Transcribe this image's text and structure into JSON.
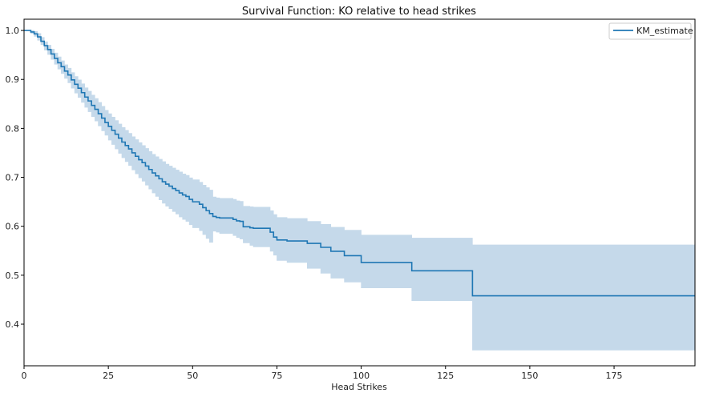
{
  "chart_data": {
    "type": "line",
    "title": "Survival Function: KO relative to head strikes",
    "xlabel": "Head Strikes",
    "ylabel": "",
    "xlim": [
      0,
      199
    ],
    "ylim": [
      0.315,
      1.023
    ],
    "xticks": [
      0,
      25,
      50,
      75,
      100,
      125,
      150,
      175
    ],
    "yticks": [
      0.4,
      0.5,
      0.6,
      0.7,
      0.8,
      0.9,
      1.0
    ],
    "ytick_labels": [
      "0.4",
      "0.5",
      "0.6",
      "0.7",
      "0.8",
      "0.9",
      "1.0"
    ],
    "grid": false,
    "legend": {
      "position": "top-right",
      "entries": [
        "KM_estimate"
      ]
    },
    "series": [
      {
        "name": "KM_estimate",
        "step": "post",
        "color": "#1f77b4",
        "band_color": "#c5d9ea",
        "x": [
          0,
          2,
          3,
          4,
          5,
          6,
          7,
          8,
          9,
          10,
          11,
          12,
          13,
          14,
          15,
          16,
          17,
          18,
          19,
          20,
          21,
          22,
          23,
          24,
          25,
          26,
          27,
          28,
          29,
          30,
          31,
          32,
          33,
          34,
          35,
          36,
          37,
          38,
          39,
          40,
          41,
          42,
          43,
          44,
          45,
          46,
          47,
          48,
          49,
          50,
          52,
          53,
          54,
          55,
          56,
          57,
          58,
          62,
          63,
          64,
          65,
          67,
          68,
          73,
          74,
          75,
          78,
          84,
          88,
          91,
          95,
          100,
          115,
          133,
          199
        ],
        "y": [
          1.0,
          0.997,
          0.993,
          0.987,
          0.978,
          0.969,
          0.961,
          0.952,
          0.943,
          0.934,
          0.926,
          0.917,
          0.909,
          0.899,
          0.89,
          0.882,
          0.873,
          0.864,
          0.856,
          0.847,
          0.839,
          0.83,
          0.821,
          0.812,
          0.804,
          0.796,
          0.788,
          0.78,
          0.772,
          0.765,
          0.758,
          0.75,
          0.743,
          0.736,
          0.73,
          0.723,
          0.716,
          0.709,
          0.703,
          0.697,
          0.691,
          0.686,
          0.682,
          0.677,
          0.673,
          0.668,
          0.664,
          0.661,
          0.655,
          0.65,
          0.645,
          0.638,
          0.632,
          0.626,
          0.62,
          0.618,
          0.617,
          0.614,
          0.611,
          0.61,
          0.599,
          0.597,
          0.596,
          0.588,
          0.578,
          0.572,
          0.57,
          0.565,
          0.557,
          0.549,
          0.54,
          0.526,
          0.509,
          0.458,
          0.458
        ],
        "ci_lower": [
          1.0,
          0.994,
          0.988,
          0.98,
          0.971,
          0.96,
          0.951,
          0.941,
          0.931,
          0.921,
          0.912,
          0.902,
          0.893,
          0.882,
          0.872,
          0.863,
          0.853,
          0.843,
          0.834,
          0.824,
          0.815,
          0.805,
          0.795,
          0.786,
          0.776,
          0.767,
          0.758,
          0.749,
          0.74,
          0.732,
          0.724,
          0.715,
          0.707,
          0.699,
          0.692,
          0.684,
          0.676,
          0.668,
          0.661,
          0.654,
          0.647,
          0.641,
          0.636,
          0.63,
          0.625,
          0.619,
          0.614,
          0.61,
          0.603,
          0.597,
          0.591,
          0.583,
          0.575,
          0.567,
          0.59,
          0.588,
          0.585,
          0.581,
          0.577,
          0.574,
          0.566,
          0.561,
          0.558,
          0.549,
          0.541,
          0.53,
          0.526,
          0.514,
          0.504,
          0.494,
          0.486,
          0.474,
          0.448,
          0.347,
          0.347
        ],
        "ci_upper": [
          1.0,
          1.0,
          0.998,
          0.994,
          0.986,
          0.977,
          0.97,
          0.962,
          0.954,
          0.946,
          0.938,
          0.93,
          0.923,
          0.914,
          0.906,
          0.899,
          0.891,
          0.883,
          0.876,
          0.868,
          0.861,
          0.853,
          0.845,
          0.837,
          0.83,
          0.823,
          0.816,
          0.809,
          0.802,
          0.796,
          0.79,
          0.783,
          0.777,
          0.771,
          0.765,
          0.759,
          0.753,
          0.747,
          0.742,
          0.737,
          0.732,
          0.727,
          0.723,
          0.719,
          0.715,
          0.711,
          0.707,
          0.704,
          0.699,
          0.695,
          0.69,
          0.684,
          0.679,
          0.674,
          0.66,
          0.658,
          0.657,
          0.655,
          0.652,
          0.651,
          0.641,
          0.64,
          0.639,
          0.632,
          0.624,
          0.618,
          0.616,
          0.61,
          0.604,
          0.598,
          0.592,
          0.582,
          0.576,
          0.562,
          0.562
        ]
      }
    ]
  }
}
